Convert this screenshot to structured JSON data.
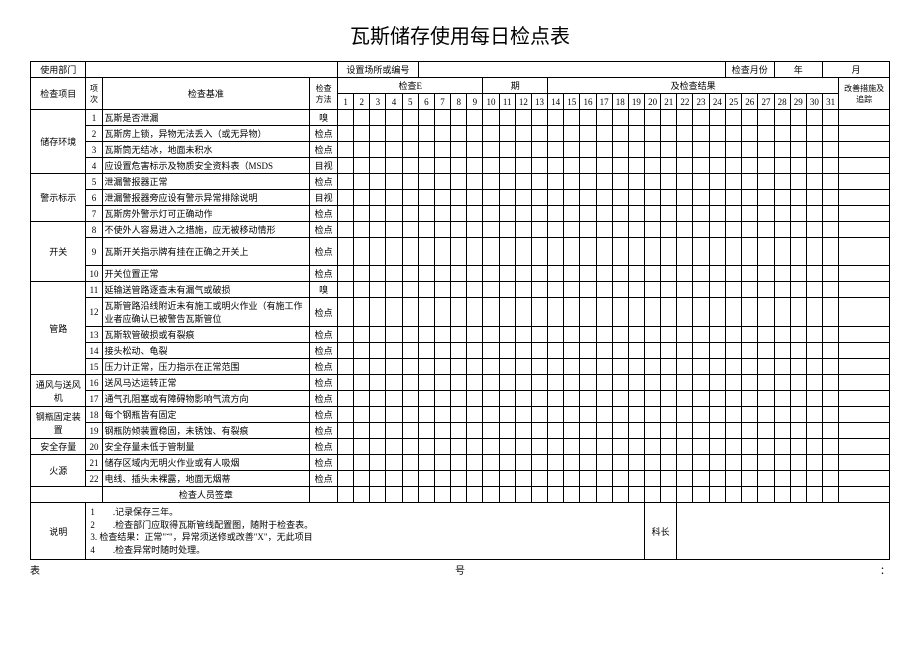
{
  "title": "瓦斯储存使用每日检点表",
  "header": {
    "dept_label": "使用部门",
    "location_label": "设置场所或编号",
    "month_label": "检查月份",
    "year_unit": "年",
    "month_unit": "月"
  },
  "columns": {
    "category": "检查项目",
    "seq": "项次",
    "standard": "检查基准",
    "method": "检查方法",
    "date_label": "检查E",
    "period_label": "期",
    "result_label": "及检查结果",
    "remark": "改善措施及追踪"
  },
  "days": [
    "1",
    "2",
    "3",
    "4",
    "5",
    "6",
    "7",
    "8",
    "9",
    "10",
    "11",
    "12",
    "13",
    "14",
    "15",
    "16",
    "17",
    "18",
    "19",
    "20",
    "21",
    "22",
    "23",
    "24",
    "25",
    "26",
    "27",
    "28",
    "29",
    "30",
    "31"
  ],
  "sections": [
    {
      "name": "储存环境",
      "rows": [
        {
          "n": "1",
          "std": "瓦斯是否泄漏",
          "m": "嗅"
        },
        {
          "n": "2",
          "std": "瓦斯房上锁，异物无法丢入（或无异物）",
          "m": "检点"
        },
        {
          "n": "3",
          "std": "瓦斯筒无结冰，地面未积水",
          "m": "检点"
        },
        {
          "n": "4",
          "std": "应设置危害标示及物质安全资料表（MSDS",
          "m": "目视"
        }
      ]
    },
    {
      "name": "警示标示",
      "rows": [
        {
          "n": "5",
          "std": "泄漏警报器正常",
          "m": "检点"
        },
        {
          "n": "6",
          "std": "泄漏警报器旁应设有警示异常排除说明",
          "m": "目视"
        },
        {
          "n": "7",
          "std": "瓦斯房外警示灯可正确动作",
          "m": "检点"
        }
      ]
    },
    {
      "name": "开关",
      "rows": [
        {
          "n": "8",
          "std": "不使外人容易进入之措施，应无被移动情形",
          "m": "检点"
        },
        {
          "n": "9",
          "std": "瓦斯开关指示牌有挂在正确之开关上",
          "m": "检点",
          "tall": true
        },
        {
          "n": "10",
          "std": "开关位置正常",
          "m": "检点"
        }
      ]
    },
    {
      "name": "管路",
      "rows": [
        {
          "n": "11",
          "std": "延输送管路逐查未有漏气或破损",
          "m": "嗅"
        },
        {
          "n": "12",
          "std": "瓦斯管路沿线附近未有施工或明火作业（有施工作业者应确认已被警告瓦斯管位",
          "m": "检点",
          "tall": true
        },
        {
          "n": "13",
          "std": "瓦斯软管破损或有裂痕",
          "m": "检点"
        },
        {
          "n": "14",
          "std": "接头松动、龟裂",
          "m": "检点"
        },
        {
          "n": "15",
          "std": "压力计正常，压力指示在正常范围",
          "m": "检点"
        }
      ]
    },
    {
      "name": "通风与送风机",
      "rows": [
        {
          "n": "16",
          "std": "送风马达运转正常",
          "m": "检点"
        },
        {
          "n": "17",
          "std": "通气孔阻塞或有障碍物影响气流方向",
          "m": "检点"
        }
      ]
    },
    {
      "name": "钢瓶固定装置",
      "rows": [
        {
          "n": "18",
          "std": "每个钢瓶皆有固定",
          "m": "检点"
        },
        {
          "n": "19",
          "std": "钢瓶防倾装置稳固，未锈蚀、有裂痕",
          "m": "检点"
        }
      ]
    },
    {
      "name": "安全存量",
      "rows": [
        {
          "n": "20",
          "std": "安全存量未低于管制量",
          "m": "检点"
        }
      ]
    },
    {
      "name": "火源",
      "rows": [
        {
          "n": "21",
          "std": "储存区域内无明火作业或有人吸烟",
          "m": "检点"
        },
        {
          "n": "22",
          "std": "电线、插头未裸露，地面无烟蒂",
          "m": "检点"
        }
      ]
    }
  ],
  "sign_label": "检查人员签章",
  "notes_label": "说明",
  "notes": "1　　.记录保存三年。\n2　　.检查部门应取得瓦斯管线配置图，随附于检查表。\n3. 检查结果：正常\"ˇ\"，异常须送修或改善\"X\"，无此项目\n4　　.检查异常时随时处理。",
  "section_chief": "科长",
  "footer_left": "表",
  "footer_mid": "号",
  "footer_right": "："
}
